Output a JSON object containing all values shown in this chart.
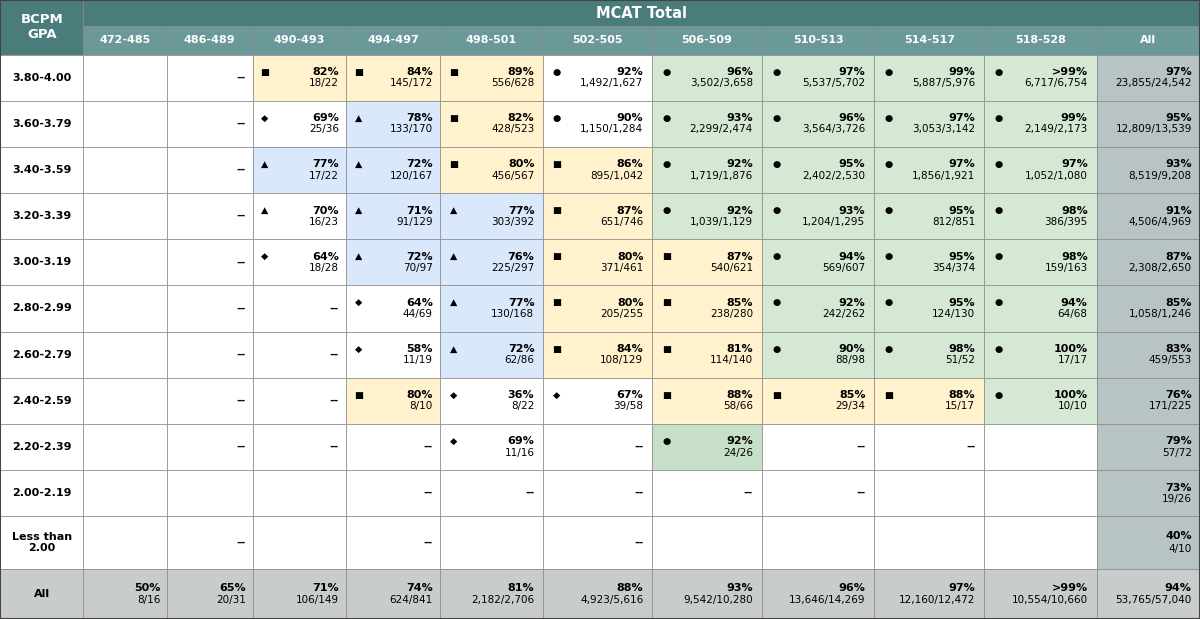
{
  "title": "MCAT Total",
  "bcpm_label": "BCPM\nGPA",
  "col_headers": [
    "472-485",
    "486-489",
    "490-493",
    "494-497",
    "498-501",
    "502-505",
    "506-509",
    "510-513",
    "514-517",
    "518-528",
    "All"
  ],
  "row_headers": [
    "3.80-4.00",
    "3.60-3.79",
    "3.40-3.59",
    "3.20-3.39",
    "3.00-3.19",
    "2.80-2.99",
    "2.60-2.79",
    "2.40-2.59",
    "2.20-2.39",
    "2.00-2.19",
    "Less than\n2.00",
    "All"
  ],
  "cells": [
    [
      "",
      "--",
      "■ 82%\n18/22",
      "■ 84%\n145/172",
      "■ 89%\n556/628",
      "● 92%\n1,492/1,627",
      "● 96%\n3,502/3,658",
      "● 97%\n5,537/5,702",
      "● 99%\n5,887/5,976",
      "● >99%\n6,717/6,754",
      "97%\n23,855/24,542"
    ],
    [
      "",
      "--",
      "◆ 69%\n25/36",
      "▲ 78%\n133/170",
      "■ 82%\n428/523",
      "● 90%\n1,150/1,284",
      "● 93%\n2,299/2,474",
      "● 96%\n3,564/3,726",
      "● 97%\n3,053/3,142",
      "● 99%\n2,149/2,173",
      "95%\n12,809/13,539"
    ],
    [
      "",
      "--",
      "▲ 77%\n17/22",
      "▲ 72%\n120/167",
      "■ 80%\n456/567",
      "■ 86%\n895/1,042",
      "● 92%\n1,719/1,876",
      "● 95%\n2,402/2,530",
      "● 97%\n1,856/1,921",
      "● 97%\n1,052/1,080",
      "93%\n8,519/9,208"
    ],
    [
      "",
      "--",
      "▲ 70%\n16/23",
      "▲ 71%\n91/129",
      "▲ 77%\n303/392",
      "■ 87%\n651/746",
      "● 92%\n1,039/1,129",
      "● 93%\n1,204/1,295",
      "● 95%\n812/851",
      "● 98%\n386/395",
      "91%\n4,506/4,969"
    ],
    [
      "",
      "--",
      "◆ 64%\n18/28",
      "▲ 72%\n70/97",
      "▲ 76%\n225/297",
      "■ 80%\n371/461",
      "■ 87%\n540/621",
      "● 94%\n569/607",
      "● 95%\n354/374",
      "● 98%\n159/163",
      "87%\n2,308/2,650"
    ],
    [
      "",
      "--",
      "--",
      "◆ 64%\n44/69",
      "▲ 77%\n130/168",
      "■ 80%\n205/255",
      "■ 85%\n238/280",
      "● 92%\n242/262",
      "● 95%\n124/130",
      "● 94%\n64/68",
      "85%\n1,058/1,246"
    ],
    [
      "",
      "--",
      "--",
      "◆ 58%\n11/19",
      "▲ 72%\n62/86",
      "■ 84%\n108/129",
      "■ 81%\n114/140",
      "● 90%\n88/98",
      "● 98%\n51/52",
      "● 100%\n17/17",
      "83%\n459/553"
    ],
    [
      "",
      "--",
      "--",
      "■ 80%\n8/10",
      "◆ 36%\n8/22",
      "◆ 67%\n39/58",
      "■ 88%\n58/66",
      "■ 85%\n29/34",
      "■ 88%\n15/17",
      "● 100%\n10/10",
      "76%\n171/225"
    ],
    [
      "",
      "--",
      "--",
      "--",
      "◆ 69%\n11/16",
      "--",
      "● 92%\n24/26",
      "--",
      "--",
      "",
      "79%\n57/72"
    ],
    [
      "",
      "",
      "",
      "--",
      "--",
      "--",
      "--",
      "--",
      "",
      "",
      "73%\n19/26"
    ],
    [
      "",
      "--",
      "",
      "--",
      "",
      "--",
      "",
      "",
      "",
      "",
      "40%\n4/10"
    ],
    [
      "50%\n8/16",
      "65%\n20/31",
      "71%\n106/149",
      "74%\n624/841",
      "81%\n2,182/2,706",
      "88%\n4,923/5,616",
      "93%\n9,542/10,280",
      "96%\n13,646/14,269",
      "97%\n12,160/12,472",
      ">99%\n10,554/10,660",
      "94%\n53,765/57,040"
    ]
  ],
  "cell_bg": [
    [
      "white",
      "white",
      "yellow",
      "yellow",
      "yellow",
      "white",
      "green",
      "green",
      "green",
      "green",
      "gray"
    ],
    [
      "white",
      "white",
      "white",
      "blue",
      "yellow",
      "white",
      "green",
      "green",
      "green",
      "green",
      "gray"
    ],
    [
      "white",
      "white",
      "blue",
      "blue",
      "yellow",
      "yellow",
      "green",
      "green",
      "green",
      "green",
      "gray"
    ],
    [
      "white",
      "white",
      "white",
      "blue",
      "blue",
      "yellow",
      "green",
      "green",
      "green",
      "green",
      "gray"
    ],
    [
      "white",
      "white",
      "white",
      "blue",
      "blue",
      "yellow",
      "yellow",
      "green",
      "green",
      "green",
      "gray"
    ],
    [
      "white",
      "white",
      "white",
      "white",
      "blue",
      "yellow",
      "yellow",
      "green",
      "green",
      "green",
      "gray"
    ],
    [
      "white",
      "white",
      "white",
      "white",
      "blue",
      "yellow",
      "yellow",
      "green",
      "green",
      "green",
      "gray"
    ],
    [
      "white",
      "white",
      "white",
      "yellow",
      "white",
      "white",
      "yellow",
      "yellow",
      "yellow",
      "green",
      "gray"
    ],
    [
      "white",
      "white",
      "white",
      "white",
      "white",
      "white",
      "green2",
      "white",
      "white",
      "white",
      "gray"
    ],
    [
      "white",
      "white",
      "white",
      "white",
      "white",
      "white",
      "white",
      "white",
      "white",
      "white",
      "gray"
    ],
    [
      "white",
      "white",
      "white",
      "white",
      "white",
      "white",
      "white",
      "white",
      "white",
      "white",
      "gray"
    ],
    [
      "silver",
      "silver",
      "silver",
      "silver",
      "silver",
      "silver",
      "silver",
      "silver",
      "silver",
      "silver",
      "silver"
    ]
  ],
  "header_bg": "#4a7c7c",
  "header_text": "#ffffff",
  "subheader_bg": "#6b9898",
  "color_yellow": "#FFF2CC",
  "color_blue": "#DAE8FC",
  "color_green": "#D5E8D4",
  "color_green2": "#C8DFC7",
  "color_gray": "#B8C4C4",
  "color_silver": "#C8CCCC",
  "color_white": "#FFFFFF",
  "border_color": "#888888",
  "outer_border": "#555555"
}
